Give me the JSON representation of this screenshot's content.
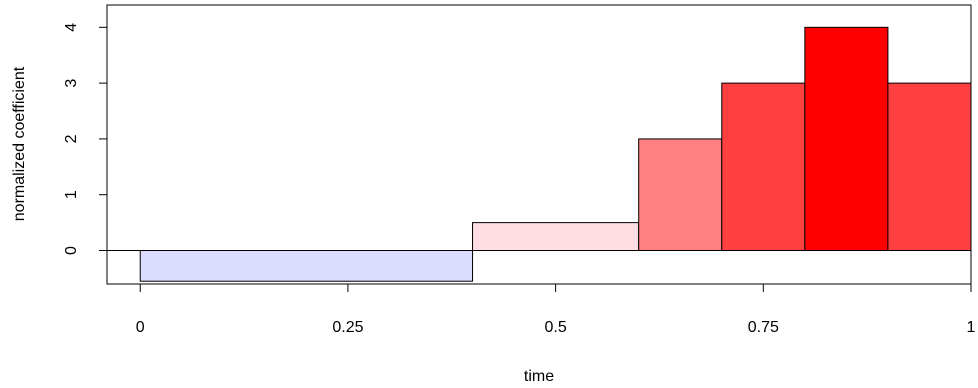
{
  "chart_data": {
    "type": "bar",
    "title": "",
    "xlabel": "time",
    "ylabel": "normalized coefficient",
    "xlim": [
      -0.04,
      1.0
    ],
    "ylim": [
      -0.6,
      4.4
    ],
    "x_ticks": [
      0,
      0.25,
      0.5,
      0.75,
      1
    ],
    "x_tick_labels": [
      "0",
      "0.25",
      "0.5",
      "0.75",
      "1"
    ],
    "y_ticks": [
      0,
      1,
      2,
      3,
      4
    ],
    "y_tick_labels": [
      "0",
      "1",
      "2",
      "3",
      "4"
    ],
    "baseline": 0,
    "grid": false,
    "bars": [
      {
        "x_start": 0.0,
        "x_end": 0.4,
        "value": -0.55,
        "color": "#dcdcff"
      },
      {
        "x_start": 0.4,
        "x_end": 0.6,
        "value": 0.5,
        "color": "#ffdde3"
      },
      {
        "x_start": 0.6,
        "x_end": 0.7,
        "value": 2.0,
        "color": "#ff8080"
      },
      {
        "x_start": 0.7,
        "x_end": 0.8,
        "value": 3.0,
        "color": "#ff4040"
      },
      {
        "x_start": 0.8,
        "x_end": 0.9,
        "value": 4.0,
        "color": "#ff0000"
      },
      {
        "x_start": 0.9,
        "x_end": 1.0,
        "value": 3.0,
        "color": "#ff4040"
      }
    ]
  }
}
